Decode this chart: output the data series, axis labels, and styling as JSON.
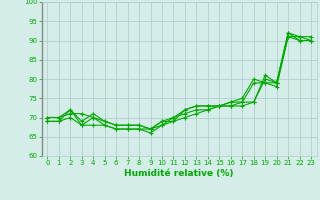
{
  "xlabel": "Humidité relative (%)",
  "ylabel": "",
  "background_color": "#d4ede8",
  "grid_color": "#b0d0cc",
  "line_color": "#00aa00",
  "spine_color": "#888888",
  "xlim": [
    -0.5,
    23.5
  ],
  "ylim": [
    60,
    100
  ],
  "yticks": [
    60,
    65,
    70,
    75,
    80,
    85,
    90,
    95,
    100
  ],
  "xticks": [
    0,
    1,
    2,
    3,
    4,
    5,
    6,
    7,
    8,
    9,
    10,
    11,
    12,
    13,
    14,
    15,
    16,
    17,
    18,
    19,
    20,
    21,
    22,
    23
  ],
  "series": [
    [
      70,
      70,
      71,
      71,
      70,
      69,
      68,
      68,
      68,
      67,
      69,
      69,
      72,
      73,
      73,
      73,
      74,
      74,
      74,
      81,
      79,
      92,
      91,
      91
    ],
    [
      70,
      70,
      72,
      69,
      71,
      69,
      68,
      68,
      68,
      67,
      69,
      70,
      72,
      73,
      73,
      73,
      74,
      75,
      80,
      79,
      79,
      91,
      91,
      90
    ],
    [
      69,
      69,
      72,
      68,
      70,
      68,
      67,
      67,
      67,
      67,
      68,
      70,
      71,
      72,
      72,
      73,
      73,
      74,
      79,
      79,
      78,
      91,
      90,
      90
    ],
    [
      69,
      69,
      70,
      68,
      68,
      68,
      67,
      67,
      67,
      66,
      68,
      69,
      70,
      71,
      72,
      73,
      73,
      73,
      74,
      80,
      79,
      92,
      90,
      90
    ]
  ]
}
